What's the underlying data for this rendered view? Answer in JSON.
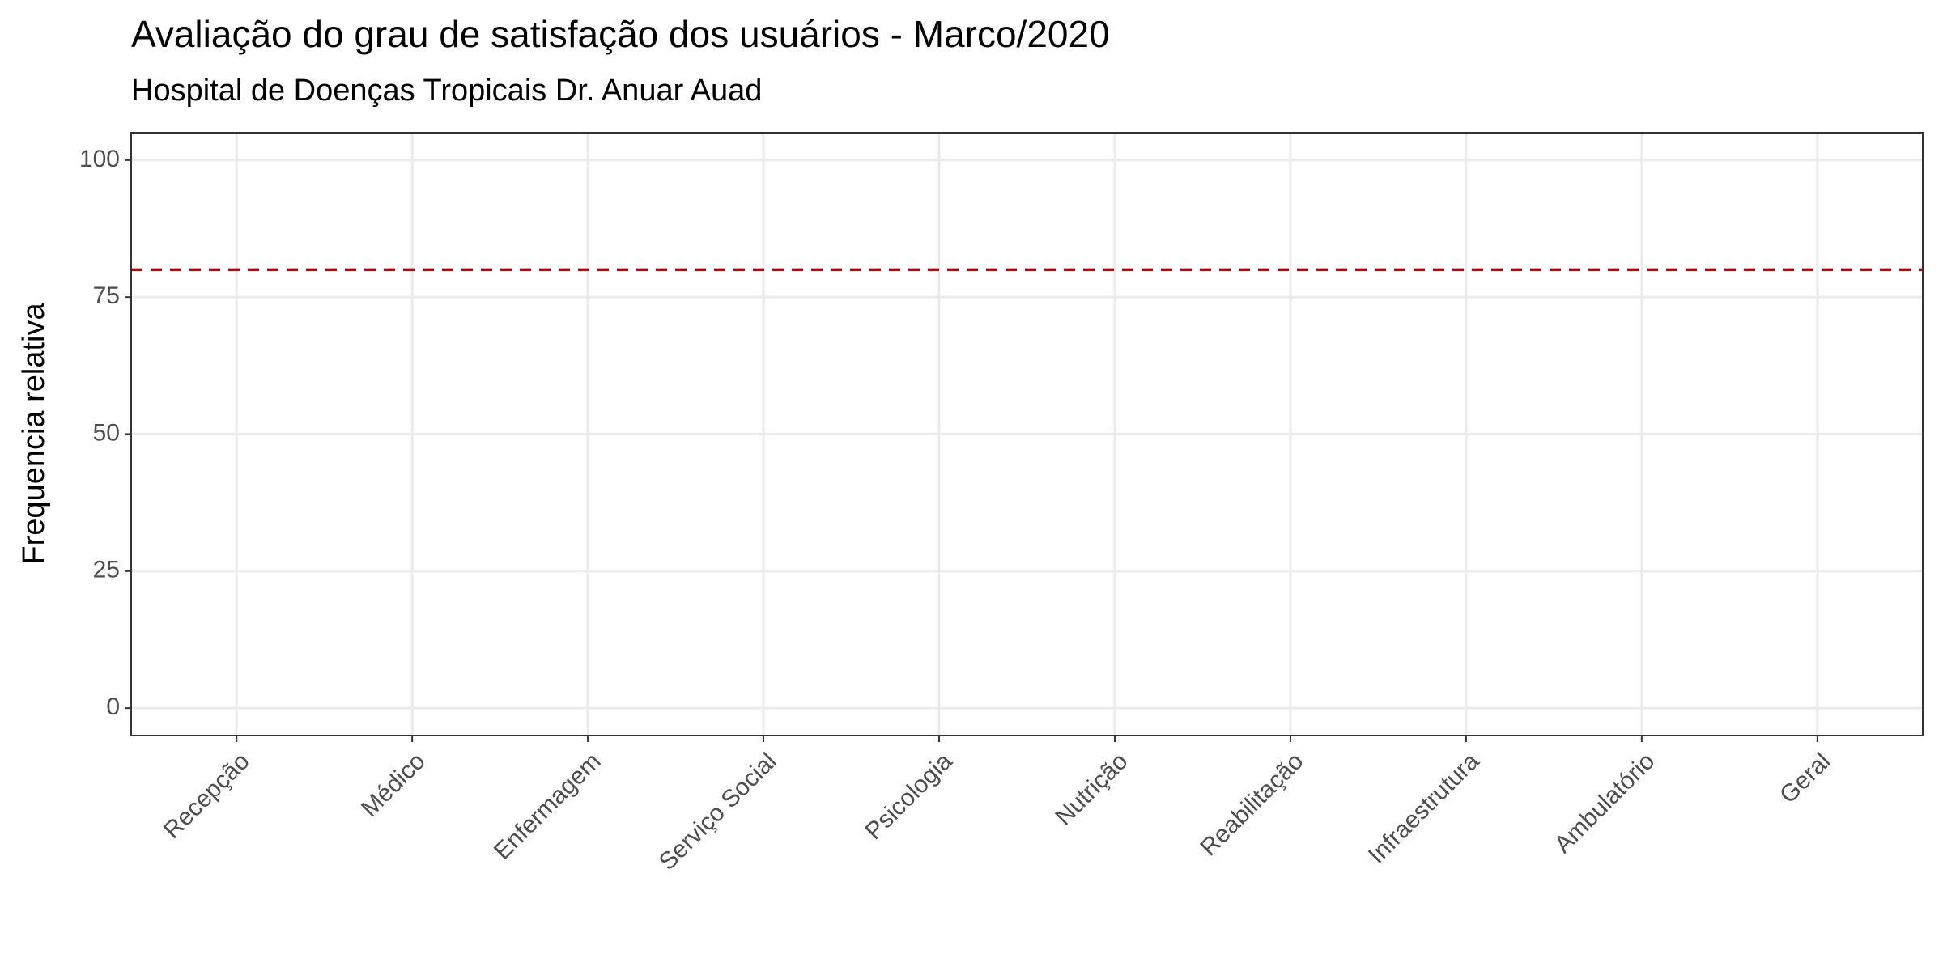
{
  "chart_data": {
    "type": "bar",
    "title": "Avaliação do grau de satisfação dos usuários - Marco/2020",
    "subtitle": "Hospital de Doenças Tropicais Dr. Anuar Auad",
    "y_label": "Frequencia relativa",
    "categories": [
      "Recepção",
      "Médico",
      "Enfermagem",
      "Serviço Social",
      "Psicologia",
      "Nutrição",
      "Reabilitação",
      "Infraestrutura",
      "Ambulatório",
      "Geral"
    ],
    "ylim": [
      -5,
      105
    ],
    "yticks": [
      0,
      25,
      50,
      75,
      100
    ],
    "grid": true,
    "reference_line": {
      "value": 80,
      "color": "#a50f15",
      "style": "dashed"
    }
  }
}
